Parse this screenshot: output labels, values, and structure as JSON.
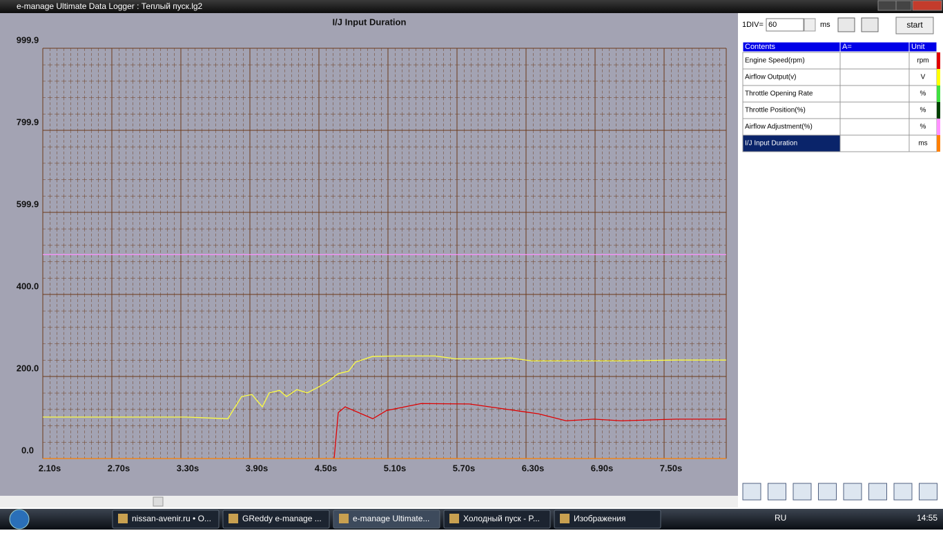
{
  "window": {
    "title": "e-manage Ultimate Data Logger : Теплый пуск.lg2"
  },
  "chart_data": {
    "type": "line",
    "title": "I/J Input Duration",
    "xlim": [
      2.1,
      8.04
    ],
    "xticks": [
      {
        "value": 2.1,
        "label": "2.10s"
      },
      {
        "value": 2.7,
        "label": "2.70s"
      },
      {
        "value": 3.3,
        "label": "3.30s"
      },
      {
        "value": 3.9,
        "label": "3.90s"
      },
      {
        "value": 4.5,
        "label": "4.50s"
      },
      {
        "value": 5.1,
        "label": "5.10s"
      },
      {
        "value": 5.7,
        "label": "5.70s"
      },
      {
        "value": 6.3,
        "label": "6.30s"
      },
      {
        "value": 6.9,
        "label": "6.90s"
      },
      {
        "value": 7.5,
        "label": "7.50s"
      }
    ],
    "ylim": [
      0,
      999.9
    ],
    "yticks": [
      {
        "value": 0,
        "label": "0.0"
      },
      {
        "value": 200,
        "label": "200.0"
      },
      {
        "value": 400,
        "label": "400.0"
      },
      599.9,
      799.9,
      999.9
    ],
    "grid": true,
    "series": [
      {
        "color": "#ffff40",
        "x": [
          2.1,
          2.508,
          2.928,
          3.348,
          3.708,
          3.828,
          3.918,
          4.008,
          4.068,
          4.158,
          4.218,
          4.308,
          4.398,
          4.488,
          4.578,
          4.668,
          4.758,
          4.818,
          4.968,
          5.208,
          5.508,
          5.688,
          5.928,
          6.168,
          6.348,
          6.648,
          7.128,
          7.608,
          8.04
        ],
        "values": [
          101,
          101,
          101,
          101,
          97,
          151,
          156,
          126,
          160,
          166,
          151,
          168,
          160,
          173,
          188,
          207,
          213,
          235,
          249,
          250,
          250,
          243,
          243,
          245,
          238,
          238,
          238,
          240,
          240
        ]
      },
      {
        "color": "#e00000",
        "x": [
          4.632,
          4.668,
          4.728,
          4.968,
          5.088,
          5.388,
          5.808,
          6.108,
          6.408,
          6.648,
          6.888,
          7.128,
          7.608,
          8.04
        ],
        "values": [
          0,
          112,
          126,
          97,
          117,
          134,
          133,
          121,
          109,
          92,
          96,
          92,
          96,
          96
        ]
      },
      {
        "color": "#ff90ff",
        "x": [
          2.1,
          8.04
        ],
        "values": [
          497,
          497
        ]
      },
      {
        "color": "#ff8000",
        "x": [
          2.1,
          8.04
        ],
        "values": [
          0,
          0
        ]
      }
    ]
  },
  "controls": {
    "div_label": "1DIV=",
    "div_value": "60",
    "unit": "ms",
    "start": "start"
  },
  "table": {
    "headers": [
      "Contents",
      "A=",
      "Unit"
    ],
    "rows": [
      {
        "content": "Engine Speed(rpm)",
        "unit": "rpm",
        "color": "#e00000"
      },
      {
        "content": "Airflow Output(v)",
        "unit": "V",
        "color": "#ffff00"
      },
      {
        "content": "Throttle Opening Rate",
        "unit": "%",
        "color": "#40e040"
      },
      {
        "content": "Throttle Position(%)",
        "unit": "%",
        "color": "#004000"
      },
      {
        "content": "Airflow Adjustment(%)",
        "unit": "%",
        "color": "#ff90ff"
      },
      {
        "content": "I/J Input Duration",
        "unit": "ms",
        "color": "#ff8000"
      }
    ]
  },
  "taskbar": {
    "items": [
      "nissan-avenir.ru • O...",
      "GReddy e-manage ...",
      "e-manage Ultimate...",
      "Холодный пуск - P...",
      "Изображения"
    ],
    "lang": "RU",
    "clock": "14:55"
  }
}
